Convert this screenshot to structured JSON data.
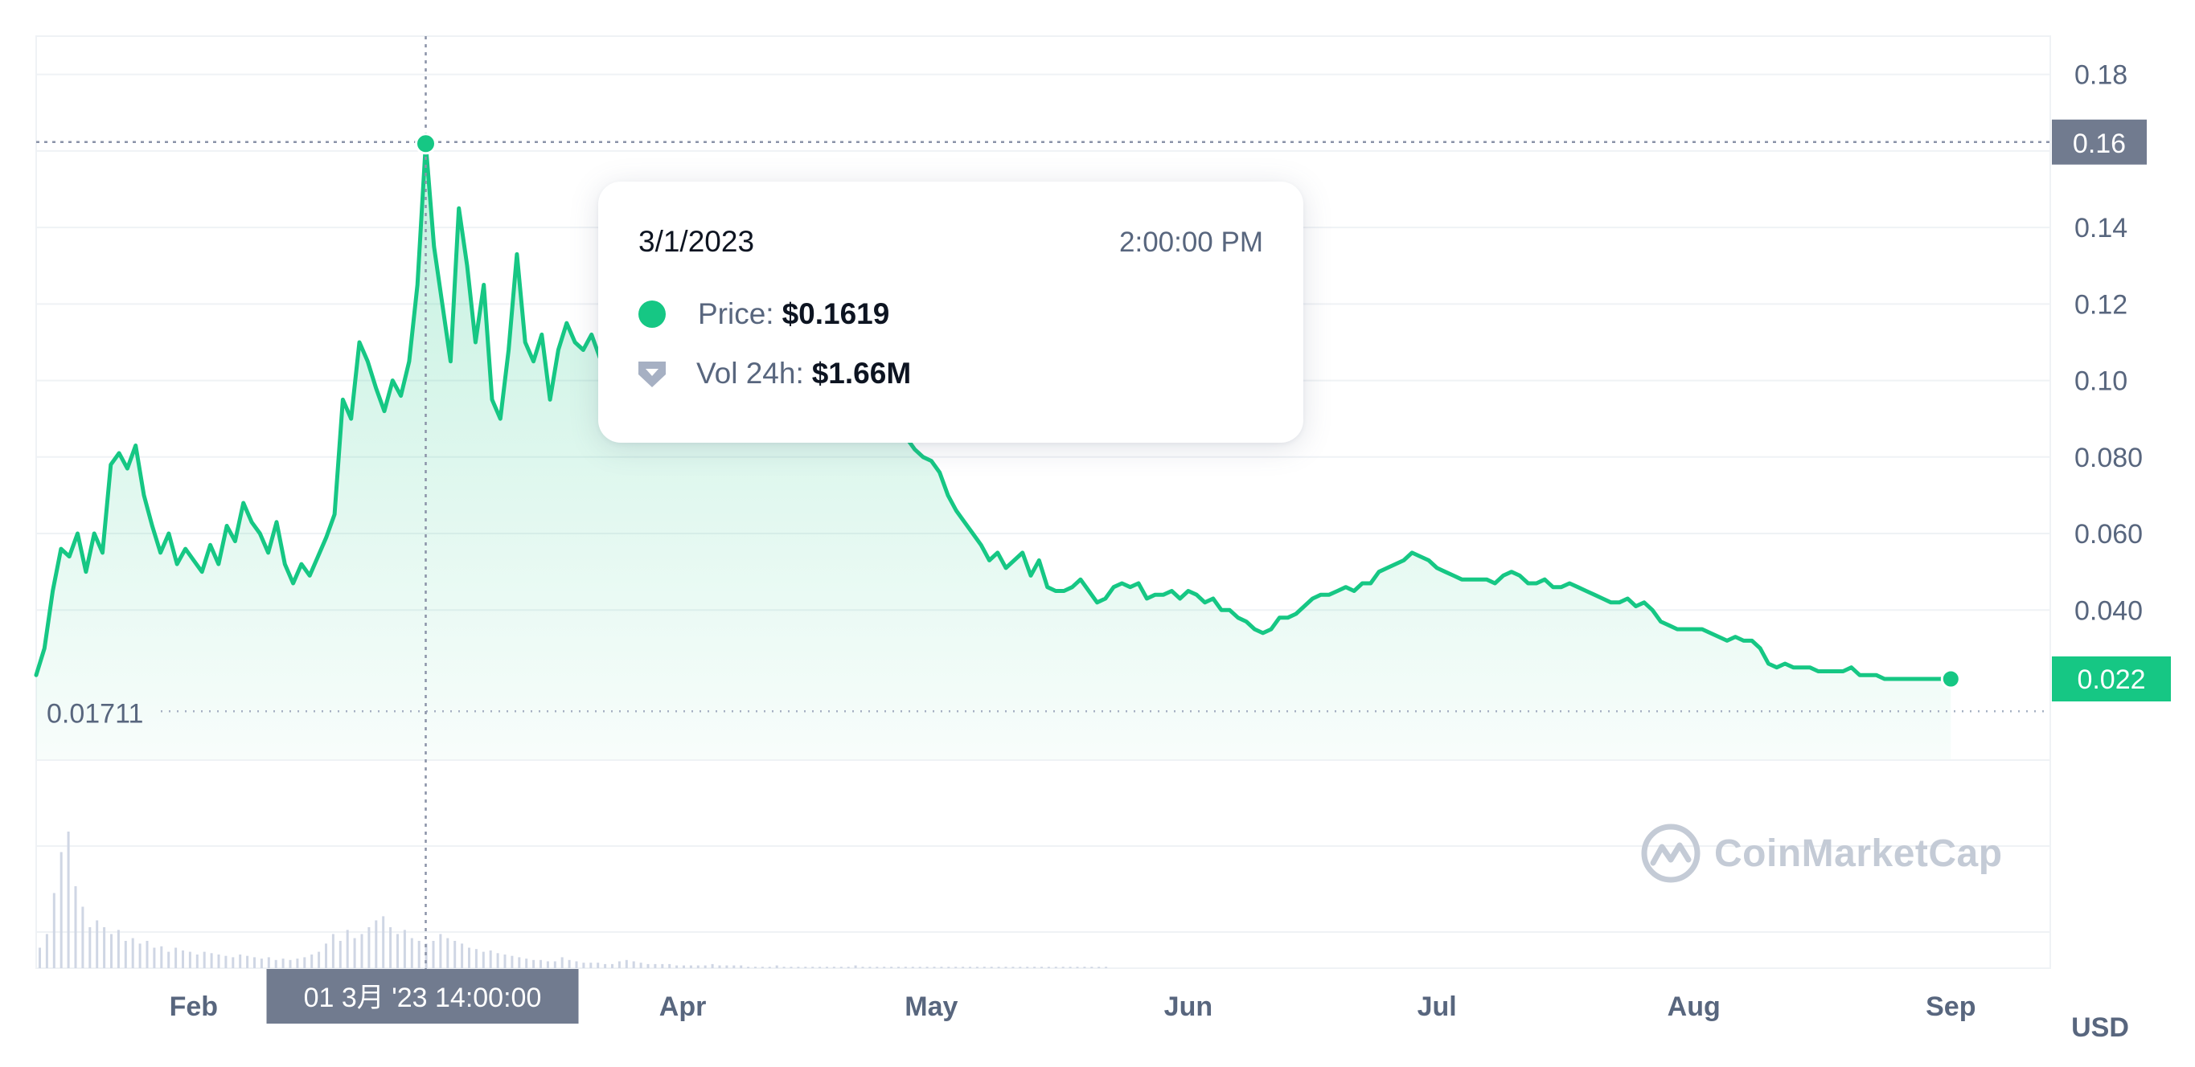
{
  "chart_data": {
    "type": "area",
    "currency": "USD",
    "x_tick_labels": [
      "Feb",
      "Apr",
      "May",
      "Jun",
      "Jul",
      "Aug",
      "Sep"
    ],
    "y_tick_labels": [
      "0.18",
      "0.16",
      "0.14",
      "0.12",
      "0.10",
      "0.080",
      "0.060",
      "0.040",
      "0.022"
    ],
    "ylim": [
      0.001,
      0.19
    ],
    "xlim": [
      "2023-01-13",
      "2023-09-13"
    ],
    "grid": true,
    "line_color": "#16c784",
    "series": [
      {
        "values": [
          [
            "2023-01-13",
            0.023
          ],
          [
            "2023-01-14",
            0.03
          ],
          [
            "2023-01-15",
            0.045
          ],
          [
            "2023-01-16",
            0.056
          ],
          [
            "2023-01-17",
            0.054
          ],
          [
            "2023-01-18",
            0.06
          ],
          [
            "2023-01-19",
            0.05
          ],
          [
            "2023-01-20",
            0.06
          ],
          [
            "2023-01-21",
            0.055
          ],
          [
            "2023-01-22",
            0.078
          ],
          [
            "2023-01-23",
            0.081
          ],
          [
            "2023-01-24",
            0.077
          ],
          [
            "2023-01-25",
            0.083
          ],
          [
            "2023-01-26",
            0.07
          ],
          [
            "2023-01-27",
            0.062
          ],
          [
            "2023-01-28",
            0.055
          ],
          [
            "2023-01-29",
            0.06
          ],
          [
            "2023-01-30",
            0.052
          ],
          [
            "2023-01-31",
            0.056
          ],
          [
            "2023-02-01",
            0.053
          ],
          [
            "2023-02-02",
            0.05
          ],
          [
            "2023-02-03",
            0.057
          ],
          [
            "2023-02-04",
            0.052
          ],
          [
            "2023-02-05",
            0.062
          ],
          [
            "2023-02-06",
            0.058
          ],
          [
            "2023-02-07",
            0.068
          ],
          [
            "2023-02-08",
            0.063
          ],
          [
            "2023-02-09",
            0.06
          ],
          [
            "2023-02-10",
            0.055
          ],
          [
            "2023-02-11",
            0.063
          ],
          [
            "2023-02-12",
            0.052
          ],
          [
            "2023-02-13",
            0.047
          ],
          [
            "2023-02-14",
            0.052
          ],
          [
            "2023-02-15",
            0.049
          ],
          [
            "2023-02-16",
            0.054
          ],
          [
            "2023-02-17",
            0.059
          ],
          [
            "2023-02-18",
            0.065
          ],
          [
            "2023-02-19",
            0.095
          ],
          [
            "2023-02-20",
            0.09
          ],
          [
            "2023-02-21",
            0.11
          ],
          [
            "2023-02-22",
            0.105
          ],
          [
            "2023-02-23",
            0.098
          ],
          [
            "2023-02-24",
            0.092
          ],
          [
            "2023-02-25",
            0.1
          ],
          [
            "2023-02-26",
            0.096
          ],
          [
            "2023-02-27",
            0.105
          ],
          [
            "2023-02-28",
            0.125
          ],
          [
            "2023-03-01",
            0.1619
          ],
          [
            "2023-03-02",
            0.135
          ],
          [
            "2023-03-03",
            0.12
          ],
          [
            "2023-03-04",
            0.105
          ],
          [
            "2023-03-05",
            0.145
          ],
          [
            "2023-03-06",
            0.13
          ],
          [
            "2023-03-07",
            0.11
          ],
          [
            "2023-03-08",
            0.125
          ],
          [
            "2023-03-09",
            0.095
          ],
          [
            "2023-03-10",
            0.09
          ],
          [
            "2023-03-11",
            0.108
          ],
          [
            "2023-03-12",
            0.133
          ],
          [
            "2023-03-13",
            0.11
          ],
          [
            "2023-03-14",
            0.105
          ],
          [
            "2023-03-15",
            0.112
          ],
          [
            "2023-03-16",
            0.095
          ],
          [
            "2023-03-17",
            0.108
          ],
          [
            "2023-03-18",
            0.115
          ],
          [
            "2023-03-19",
            0.11
          ],
          [
            "2023-03-20",
            0.108
          ],
          [
            "2023-03-21",
            0.112
          ],
          [
            "2023-03-22",
            0.106
          ],
          [
            "2023-03-23",
            0.11
          ],
          [
            "2023-03-24",
            0.108
          ],
          [
            "2023-03-25",
            0.112
          ],
          [
            "2023-03-26",
            0.105
          ],
          [
            "2023-03-27",
            0.11
          ],
          [
            "2023-03-28",
            0.108
          ],
          [
            "2023-03-29",
            0.112
          ],
          [
            "2023-03-30",
            0.106
          ],
          [
            "2023-03-31",
            0.11
          ],
          [
            "2023-04-01",
            0.108
          ],
          [
            "2023-04-02",
            0.11
          ],
          [
            "2023-04-03",
            0.107
          ],
          [
            "2023-04-04",
            0.109
          ],
          [
            "2023-04-05",
            0.106
          ],
          [
            "2023-04-06",
            0.108
          ],
          [
            "2023-04-07",
            0.105
          ],
          [
            "2023-04-08",
            0.107
          ],
          [
            "2023-04-09",
            0.104
          ],
          [
            "2023-04-10",
            0.106
          ],
          [
            "2023-04-11",
            0.103
          ],
          [
            "2023-04-12",
            0.105
          ],
          [
            "2023-04-13",
            0.102
          ],
          [
            "2023-04-14",
            0.104
          ],
          [
            "2023-04-15",
            0.101
          ],
          [
            "2023-04-16",
            0.103
          ],
          [
            "2023-04-17",
            0.1
          ],
          [
            "2023-04-18",
            0.102
          ],
          [
            "2023-04-19",
            0.099
          ],
          [
            "2023-04-20",
            0.101
          ],
          [
            "2023-04-21",
            0.098
          ],
          [
            "2023-04-22",
            0.1
          ],
          [
            "2023-04-23",
            0.094
          ],
          [
            "2023-04-24",
            0.091
          ],
          [
            "2023-04-25",
            0.088
          ],
          [
            "2023-04-26",
            0.094
          ],
          [
            "2023-04-27",
            0.09
          ],
          [
            "2023-04-28",
            0.085
          ],
          [
            "2023-04-29",
            0.082
          ],
          [
            "2023-04-30",
            0.08
          ],
          [
            "2023-05-01",
            0.079
          ],
          [
            "2023-05-02",
            0.076
          ],
          [
            "2023-05-03",
            0.07
          ],
          [
            "2023-05-04",
            0.066
          ],
          [
            "2023-05-05",
            0.063
          ],
          [
            "2023-05-06",
            0.06
          ],
          [
            "2023-05-07",
            0.057
          ],
          [
            "2023-05-08",
            0.053
          ],
          [
            "2023-05-09",
            0.055
          ],
          [
            "2023-05-10",
            0.051
          ],
          [
            "2023-05-11",
            0.053
          ],
          [
            "2023-05-12",
            0.055
          ],
          [
            "2023-05-13",
            0.049
          ],
          [
            "2023-05-14",
            0.053
          ],
          [
            "2023-05-15",
            0.046
          ],
          [
            "2023-05-16",
            0.045
          ],
          [
            "2023-05-17",
            0.045
          ],
          [
            "2023-05-18",
            0.046
          ],
          [
            "2023-05-19",
            0.048
          ],
          [
            "2023-05-20",
            0.045
          ],
          [
            "2023-05-21",
            0.042
          ],
          [
            "2023-05-22",
            0.043
          ],
          [
            "2023-05-23",
            0.046
          ],
          [
            "2023-05-24",
            0.047
          ],
          [
            "2023-05-25",
            0.046
          ],
          [
            "2023-05-26",
            0.047
          ],
          [
            "2023-05-27",
            0.043
          ],
          [
            "2023-05-28",
            0.044
          ],
          [
            "2023-05-29",
            0.044
          ],
          [
            "2023-05-30",
            0.045
          ],
          [
            "2023-05-31",
            0.043
          ],
          [
            "2023-06-01",
            0.045
          ],
          [
            "2023-06-02",
            0.044
          ],
          [
            "2023-06-03",
            0.042
          ],
          [
            "2023-06-04",
            0.043
          ],
          [
            "2023-06-05",
            0.04
          ],
          [
            "2023-06-06",
            0.04
          ],
          [
            "2023-06-07",
            0.038
          ],
          [
            "2023-06-08",
            0.037
          ],
          [
            "2023-06-09",
            0.035
          ],
          [
            "2023-06-10",
            0.034
          ],
          [
            "2023-06-11",
            0.035
          ],
          [
            "2023-06-12",
            0.038
          ],
          [
            "2023-06-13",
            0.038
          ],
          [
            "2023-06-14",
            0.039
          ],
          [
            "2023-06-15",
            0.041
          ],
          [
            "2023-06-16",
            0.043
          ],
          [
            "2023-06-17",
            0.044
          ],
          [
            "2023-06-18",
            0.044
          ],
          [
            "2023-06-19",
            0.045
          ],
          [
            "2023-06-20",
            0.046
          ],
          [
            "2023-06-21",
            0.045
          ],
          [
            "2023-06-22",
            0.047
          ],
          [
            "2023-06-23",
            0.047
          ],
          [
            "2023-06-24",
            0.05
          ],
          [
            "2023-06-25",
            0.051
          ],
          [
            "2023-06-26",
            0.052
          ],
          [
            "2023-06-27",
            0.053
          ],
          [
            "2023-06-28",
            0.055
          ],
          [
            "2023-06-29",
            0.054
          ],
          [
            "2023-06-30",
            0.053
          ],
          [
            "2023-07-01",
            0.051
          ],
          [
            "2023-07-02",
            0.05
          ],
          [
            "2023-07-03",
            0.049
          ],
          [
            "2023-07-04",
            0.048
          ],
          [
            "2023-07-05",
            0.048
          ],
          [
            "2023-07-06",
            0.048
          ],
          [
            "2023-07-07",
            0.048
          ],
          [
            "2023-07-08",
            0.047
          ],
          [
            "2023-07-09",
            0.049
          ],
          [
            "2023-07-10",
            0.05
          ],
          [
            "2023-07-11",
            0.049
          ],
          [
            "2023-07-12",
            0.047
          ],
          [
            "2023-07-13",
            0.047
          ],
          [
            "2023-07-14",
            0.048
          ],
          [
            "2023-07-15",
            0.046
          ],
          [
            "2023-07-16",
            0.046
          ],
          [
            "2023-07-17",
            0.047
          ],
          [
            "2023-07-18",
            0.046
          ],
          [
            "2023-07-19",
            0.045
          ],
          [
            "2023-07-20",
            0.044
          ],
          [
            "2023-07-21",
            0.043
          ],
          [
            "2023-07-22",
            0.042
          ],
          [
            "2023-07-23",
            0.042
          ],
          [
            "2023-07-24",
            0.043
          ],
          [
            "2023-07-25",
            0.041
          ],
          [
            "2023-07-26",
            0.042
          ],
          [
            "2023-07-27",
            0.04
          ],
          [
            "2023-07-28",
            0.037
          ],
          [
            "2023-07-29",
            0.036
          ],
          [
            "2023-07-30",
            0.035
          ],
          [
            "2023-07-31",
            0.035
          ],
          [
            "2023-08-01",
            0.035
          ],
          [
            "2023-08-02",
            0.035
          ],
          [
            "2023-08-03",
            0.034
          ],
          [
            "2023-08-04",
            0.033
          ],
          [
            "2023-08-05",
            0.032
          ],
          [
            "2023-08-06",
            0.033
          ],
          [
            "2023-08-07",
            0.032
          ],
          [
            "2023-08-08",
            0.032
          ],
          [
            "2023-08-09",
            0.03
          ],
          [
            "2023-08-10",
            0.026
          ],
          [
            "2023-08-11",
            0.025
          ],
          [
            "2023-08-12",
            0.026
          ],
          [
            "2023-08-13",
            0.025
          ],
          [
            "2023-08-14",
            0.025
          ],
          [
            "2023-08-15",
            0.025
          ],
          [
            "2023-08-16",
            0.024
          ],
          [
            "2023-08-17",
            0.024
          ],
          [
            "2023-08-18",
            0.024
          ],
          [
            "2023-08-19",
            0.024
          ],
          [
            "2023-08-20",
            0.025
          ],
          [
            "2023-08-21",
            0.023
          ],
          [
            "2023-08-22",
            0.023
          ],
          [
            "2023-08-23",
            0.023
          ],
          [
            "2023-08-24",
            0.022
          ],
          [
            "2023-08-25",
            0.022
          ],
          [
            "2023-08-26",
            0.022
          ],
          [
            "2023-08-27",
            0.022
          ],
          [
            "2023-08-28",
            0.022
          ],
          [
            "2023-08-29",
            0.022
          ],
          [
            "2023-08-30",
            0.022
          ],
          [
            "2023-08-31",
            0.022
          ],
          [
            "2023-09-01",
            0.022
          ]
        ]
      }
    ],
    "volume_relative": [
      0.15,
      0.25,
      0.55,
      0.85,
      1.0,
      0.6,
      0.45,
      0.3,
      0.35,
      0.3,
      0.25,
      0.28,
      0.2,
      0.22,
      0.18,
      0.2,
      0.15,
      0.16,
      0.12,
      0.15,
      0.13,
      0.12,
      0.1,
      0.12,
      0.11,
      0.1,
      0.09,
      0.08,
      0.1,
      0.09,
      0.08,
      0.07,
      0.08,
      0.06,
      0.07,
      0.06,
      0.07,
      0.08,
      0.1,
      0.12,
      0.18,
      0.25,
      0.2,
      0.28,
      0.22,
      0.25,
      0.3,
      0.35,
      0.38,
      0.3,
      0.25,
      0.28,
      0.22,
      0.2,
      0.18,
      0.2,
      0.25,
      0.22,
      0.2,
      0.18,
      0.15,
      0.14,
      0.12,
      0.13,
      0.11,
      0.1,
      0.09,
      0.08,
      0.07,
      0.06,
      0.06,
      0.05,
      0.05,
      0.08,
      0.06,
      0.05,
      0.04,
      0.04,
      0.04,
      0.03,
      0.03,
      0.05,
      0.06,
      0.05,
      0.04,
      0.03,
      0.03,
      0.03,
      0.03,
      0.02,
      0.02,
      0.02,
      0.02,
      0.02,
      0.03,
      0.02,
      0.02,
      0.02,
      0.02,
      0.01,
      0.01,
      0.01,
      0.01,
      0.02,
      0.01,
      0.01,
      0.01,
      0.01,
      0.01,
      0.01,
      0.01,
      0.01,
      0.01,
      0.01,
      0.02,
      0.01,
      0.01,
      0.01,
      0.01,
      0.01,
      0.01,
      0.01,
      0.01,
      0.01,
      0.01,
      0.01,
      0.01,
      0.01,
      0.01,
      0.01,
      0.01,
      0.01,
      0.01,
      0.01,
      0.01,
      0.01,
      0.01,
      0.01,
      0.01,
      0.01,
      0.01,
      0.01,
      0.01,
      0.01,
      0.01,
      0.01,
      0.01,
      0.01,
      0.01,
      0.01
    ],
    "hover": {
      "x": "2023-03-01",
      "price_value": 0.1619,
      "axis_marker_label": "0.16",
      "x_marker_label": "01 3月 '23   14:00:00"
    },
    "current_price_label": "0.022",
    "range_low_label": "0.01711",
    "range_low_value": 0.01711,
    "axis_unit_label": "USD"
  },
  "tooltip": {
    "date": "3/1/2023",
    "time": "2:00:00 PM",
    "price_label": "Price:",
    "price_value": "$0.1619",
    "vol_label": "Vol 24h:",
    "vol_value": "$1.66M"
  },
  "watermark": {
    "text": "CoinMarketCap",
    "icon": "coinmarketcap-logo-icon"
  }
}
